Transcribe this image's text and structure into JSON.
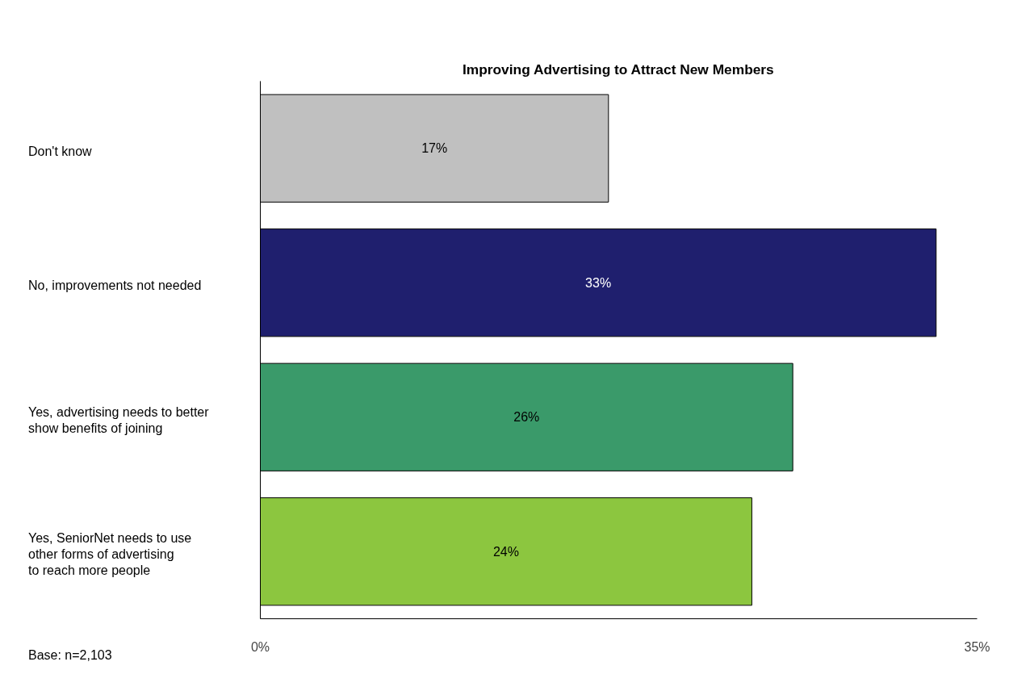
{
  "chart_data": {
    "type": "bar",
    "orientation": "horizontal",
    "title": "Improving Advertising to Attract New Members",
    "categories": [
      "Don't know",
      "No, improvements not needed",
      "Yes, advertising needs to better\nshow benefits of joining",
      "Yes, SeniorNet needs to use\nother forms of advertising\nto reach more people"
    ],
    "values": [
      17,
      33,
      26,
      24
    ],
    "colors": [
      "#c0c0c0",
      "#1f1f6e",
      "#3a9a6a",
      "#8cc63f"
    ],
    "value_labels": [
      "17%",
      "33%",
      "26%",
      "24%"
    ],
    "xlim": [
      0,
      35
    ],
    "xticks": [
      {
        "value": 0,
        "label": "0%"
      },
      {
        "value": 35,
        "label": "35%"
      }
    ],
    "annotations": [
      "Base: n=2,103"
    ]
  }
}
